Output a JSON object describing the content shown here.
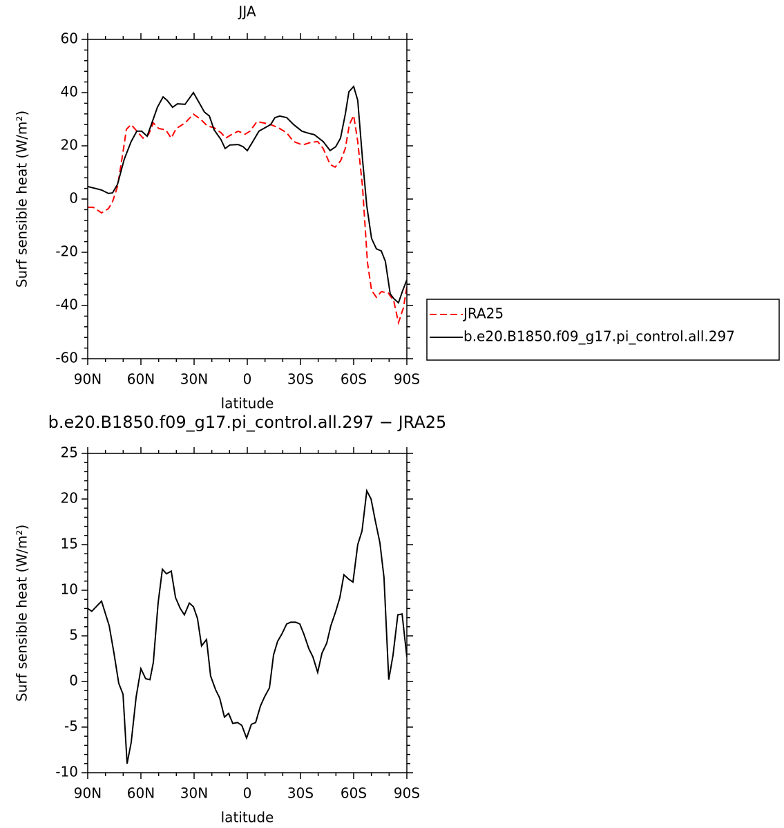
{
  "chart_data": [
    {
      "type": "line",
      "title": "JJA",
      "xlabel": "latitude",
      "ylabel": "Surf sensible heat (W/m²)",
      "xlim": [
        90,
        -90
      ],
      "xticks": [
        {
          "value": 90,
          "label": "90N"
        },
        {
          "value": 60,
          "label": "60N"
        },
        {
          "value": 30,
          "label": "30N"
        },
        0,
        {
          "value": -30,
          "label": "30S"
        },
        {
          "value": -60,
          "label": "60S"
        },
        {
          "value": -90,
          "label": "90S"
        }
      ],
      "ylim": [
        -60,
        60
      ],
      "yticks": [
        -60,
        -40,
        -20,
        0,
        20,
        40,
        60
      ],
      "grid": false,
      "legend": "right",
      "series": [
        {
          "name": "JRA25",
          "color": "#ff0000",
          "line_style": "dashed",
          "x": [
            90,
            86.9,
            82.2,
            78.3,
            76,
            73.2,
            70,
            68.2,
            65.5,
            62.3,
            58.8,
            55.7,
            53,
            49.9,
            46,
            42.9,
            40.1,
            35.1,
            30.4,
            26.5,
            22.6,
            18.7,
            14.8,
            12.1,
            9,
            5.1,
            1.2,
            -1.5,
            -5.4,
            -9.3,
            -13.2,
            -17.5,
            -22.2,
            -26.1,
            -31.2,
            -35.8,
            -39.7,
            -42.8,
            -46.7,
            -49.5,
            -52.6,
            -55.3,
            -57.6,
            -60,
            -62.3,
            -65,
            -67.8,
            -70.1,
            -72.8,
            -75.6,
            -79.5,
            -82.6,
            -85.3,
            -88.1,
            -90
          ],
          "values": [
            -3.1,
            -3.1,
            -5.2,
            -3.6,
            -1,
            4.7,
            18,
            26.2,
            28,
            25.5,
            22.9,
            24.2,
            28.6,
            26.5,
            26,
            22.9,
            26.5,
            28.6,
            31.9,
            30.1,
            27.5,
            26.8,
            24.9,
            22.9,
            24.2,
            25.5,
            24.4,
            25.5,
            29.1,
            28.6,
            28,
            26.8,
            24.9,
            21.6,
            20.3,
            21.3,
            21.6,
            19,
            13,
            12,
            14.3,
            19,
            28,
            31.4,
            21.6,
            4.7,
            -23.9,
            -34.3,
            -36.9,
            -34.8,
            -35.3,
            -38.2,
            -46.5,
            -40.8,
            -33
          ]
        },
        {
          "name": "b.e20.B1850.f09_g17.pi_control.all.297",
          "color": "#000000",
          "line_style": "solid",
          "x": [
            90,
            82.2,
            78.3,
            76,
            73.2,
            69.4,
            65.5,
            62.3,
            59.6,
            56.5,
            53.8,
            50.7,
            47.5,
            45.2,
            42.1,
            39.4,
            35.1,
            30.4,
            27.3,
            24.2,
            21.4,
            18.7,
            14.8,
            12.5,
            9.8,
            5.1,
            2.4,
            0,
            -3.1,
            -6.6,
            -10.5,
            -13.2,
            -15.6,
            -18.3,
            -22.2,
            -26.1,
            -30.8,
            -34.7,
            -37.8,
            -42.8,
            -46.7,
            -49.9,
            -52.6,
            -55.3,
            -57.3,
            -60,
            -62.3,
            -65,
            -67.4,
            -70.1,
            -72.8,
            -75.6,
            -77.9,
            -80.6,
            -82.6,
            -85.3,
            -87.7,
            -90
          ],
          "values": [
            4.7,
            3.4,
            2.1,
            2.3,
            5.5,
            15,
            21.6,
            25.5,
            25.5,
            23.6,
            28.6,
            34.5,
            38.4,
            37.1,
            34.5,
            35.8,
            35.6,
            40,
            36.4,
            32.7,
            31.2,
            26,
            22.3,
            19,
            20.3,
            20.5,
            19.7,
            18.2,
            21.6,
            25.5,
            27,
            28,
            30.6,
            31.2,
            30.6,
            28,
            25.5,
            24.7,
            24.2,
            21.6,
            18.2,
            19.7,
            22.9,
            31.9,
            40.3,
            42.3,
            37.1,
            15,
            -2.6,
            -14.8,
            -18.7,
            -19.5,
            -23.4,
            -35.6,
            -37.4,
            -39,
            -34.3,
            -30.4
          ]
        }
      ]
    },
    {
      "type": "line",
      "title": "b.e20.B1850.f09_g17.pi_control.all.297 − JRA25",
      "xlabel": "latitude",
      "ylabel": "Surf sensible heat (W/m²)",
      "xlim": [
        90,
        -90
      ],
      "xticks": [
        {
          "value": 90,
          "label": "90N"
        },
        {
          "value": 60,
          "label": "60N"
        },
        {
          "value": 30,
          "label": "30N"
        },
        0,
        {
          "value": -30,
          "label": "30S"
        },
        {
          "value": -60,
          "label": "60S"
        },
        {
          "value": -90,
          "label": "90S"
        }
      ],
      "ylim": [
        -10,
        25
      ],
      "yticks": [
        -10,
        -5,
        0,
        5,
        10,
        15,
        20,
        25
      ],
      "grid": false,
      "series": [
        {
          "color": "#000000",
          "line_style": "solid",
          "x": [
            90,
            87.7,
            82.2,
            77.9,
            75.2,
            72.5,
            70.1,
            67.8,
            65.5,
            62.7,
            60,
            57.3,
            54.9,
            53,
            50.3,
            47.9,
            45.6,
            42.9,
            40.5,
            37.8,
            35.5,
            32.7,
            30.4,
            28.1,
            25.8,
            23,
            20.7,
            17.9,
            15.6,
            12.9,
            10.5,
            8.2,
            5.5,
            3.1,
            0.4,
            -2.3,
            -4.7,
            -7.4,
            -9.7,
            -12.5,
            -14.8,
            -17.1,
            -19.5,
            -22.2,
            -24.5,
            -27.3,
            -29.6,
            -31.9,
            -34.7,
            -37,
            -39.7,
            -42.1,
            -44.8,
            -47.1,
            -49.9,
            -52.2,
            -54.5,
            -57.3,
            -59.6,
            -62.3,
            -64.7,
            -67.4,
            -69.8,
            -72.1,
            -74.8,
            -77.1,
            -79.8,
            -82.2,
            -84.9,
            -87.3,
            -90
          ],
          "values": [
            8.0,
            7.7,
            8.8,
            6.1,
            3.1,
            -0.2,
            -1.4,
            -9.0,
            -6.7,
            -1.7,
            1.4,
            0.3,
            0.2,
            2.1,
            8.6,
            12.3,
            11.8,
            12.1,
            9.2,
            8.0,
            7.3,
            8.6,
            8.2,
            6.9,
            3.9,
            4.6,
            0.6,
            -0.9,
            -1.8,
            -3.9,
            -3.5,
            -4.6,
            -4.5,
            -4.8,
            -6.2,
            -4.7,
            -4.5,
            -2.7,
            -1.7,
            -0.7,
            2.9,
            4.4,
            5.2,
            6.3,
            6.5,
            6.5,
            6.3,
            5.2,
            3.6,
            2.7,
            1.0,
            3.1,
            4.2,
            6.1,
            7.7,
            9.2,
            11.7,
            11.2,
            10.9,
            15.0,
            16.5,
            20.9,
            20.0,
            17.7,
            15.2,
            11.4,
            0.2,
            2.9,
            7.3,
            7.4,
            2.7
          ]
        }
      ]
    }
  ]
}
